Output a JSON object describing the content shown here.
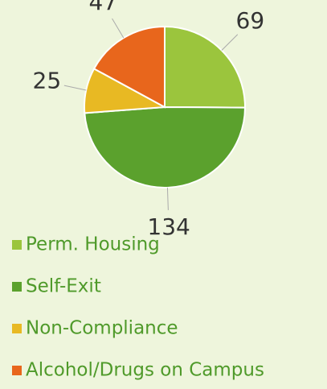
{
  "chart_data": {
    "type": "pie",
    "categories": [
      "Perm. Housing",
      "Self-Exit",
      "Non-Compliance",
      "Alcohol/Drugs on Campus"
    ],
    "values": [
      69,
      134,
      25,
      47
    ],
    "colors": [
      "#9bc53d",
      "#5ba12d",
      "#e8b923",
      "#e8661c"
    ]
  }
}
